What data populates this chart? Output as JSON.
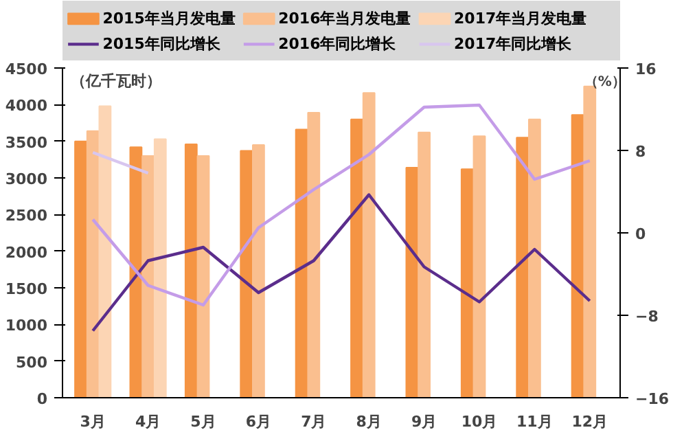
{
  "chart_data": {
    "type": "bar",
    "ylabel": "（亿千瓦时）",
    "y2label": "（%）",
    "categories": [
      "3月",
      "4月",
      "5月",
      "6月",
      "7月",
      "8月",
      "9月",
      "10月",
      "11月",
      "12月"
    ],
    "series": [
      {
        "name": "2015年当月发电量",
        "color": "#f59443",
        "values": [
          3500,
          3420,
          3460,
          3370,
          3660,
          3800,
          3140,
          3120,
          3550,
          3860
        ]
      },
      {
        "name": "2016年当月发电量",
        "color": "#fabf8f",
        "values": [
          3640,
          3300,
          3300,
          3450,
          3890,
          4160,
          3620,
          3570,
          3800,
          4250
        ]
      },
      {
        "name": "2017年当月发电量",
        "color": "#fcd5b4",
        "values": [
          3980,
          3530,
          null,
          null,
          null,
          null,
          null,
          null,
          null,
          null
        ]
      },
      {
        "name": "2015年同比增长",
        "type": "line",
        "axis": "y2",
        "color": "#5b2d8c",
        "values": [
          -9.5,
          -2.7,
          -1.4,
          -5.8,
          -2.7,
          3.7,
          -3.3,
          -6.7,
          -1.6,
          -6.6
        ]
      },
      {
        "name": "2016年同比增长",
        "type": "line",
        "axis": "y2",
        "color": "#c49ce8",
        "values": [
          1.3,
          -5.1,
          -7.0,
          0.5,
          4.2,
          7.6,
          12.2,
          12.4,
          5.2,
          7.0
        ]
      },
      {
        "name": "2017年同比增长",
        "type": "line",
        "axis": "y2",
        "color": "#d8c6ef",
        "values": [
          7.8,
          5.8,
          null,
          null,
          null,
          null,
          null,
          null,
          null,
          null
        ]
      }
    ],
    "ylim": [
      0,
      4500
    ],
    "yticks": [
      0,
      500,
      1000,
      1500,
      2000,
      2500,
      3000,
      3500,
      4000,
      4500
    ],
    "y2lim": [
      -16,
      16
    ],
    "y2ticks": [
      -16,
      -8,
      0,
      8,
      16
    ],
    "grid": false,
    "legend": "top",
    "marker": "none"
  }
}
